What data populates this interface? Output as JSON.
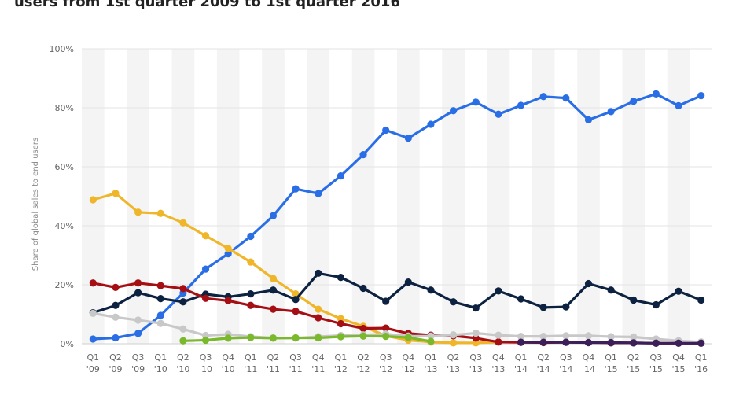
{
  "title": "users from 1st quarter 2009 to 1st quarter 2016",
  "chart_data": {
    "type": "line",
    "ylabel": "Share of global sales to end users",
    "ylim": [
      0,
      100
    ],
    "y_ticks": [
      "0%",
      "20%",
      "40%",
      "60%",
      "80%",
      "100%"
    ],
    "y_tick_values": [
      0,
      20,
      40,
      60,
      80,
      100
    ],
    "grid": true,
    "legend": "none",
    "categories": [
      [
        "Q1",
        "'09"
      ],
      [
        "Q2",
        "'09"
      ],
      [
        "Q3",
        "'09"
      ],
      [
        "Q1",
        "'10"
      ],
      [
        "Q2",
        "'10"
      ],
      [
        "Q3",
        "'10"
      ],
      [
        "Q4",
        "'10"
      ],
      [
        "Q1",
        "'11"
      ],
      [
        "Q2",
        "'11"
      ],
      [
        "Q3",
        "'11"
      ],
      [
        "Q4",
        "'11"
      ],
      [
        "Q1",
        "'12"
      ],
      [
        "Q2",
        "'12"
      ],
      [
        "Q3",
        "'12"
      ],
      [
        "Q4",
        "'12"
      ],
      [
        "Q1",
        "'13"
      ],
      [
        "Q2",
        "'13"
      ],
      [
        "Q3",
        "'13"
      ],
      [
        "Q4",
        "'13"
      ],
      [
        "Q1",
        "'14"
      ],
      [
        "Q2",
        "'14"
      ],
      [
        "Q3",
        "'14"
      ],
      [
        "Q4",
        "'14"
      ],
      [
        "Q1",
        "'15"
      ],
      [
        "Q2",
        "'15"
      ],
      [
        "Q3",
        "'15"
      ],
      [
        "Q4",
        "'15"
      ],
      [
        "Q1",
        "'16"
      ]
    ],
    "series": [
      {
        "color": "#2a6ee6",
        "values": [
          1.6,
          2.0,
          3.5,
          9.6,
          17.2,
          25.3,
          30.5,
          36.4,
          43.4,
          52.5,
          50.9,
          56.9,
          64.1,
          72.4,
          69.7,
          74.4,
          79.0,
          81.9,
          77.8,
          80.8,
          83.8,
          83.3,
          75.9,
          78.7,
          82.2,
          84.7,
          80.7,
          84.1
        ]
      },
      {
        "color": "#f0b62a",
        "values": [
          48.8,
          51.0,
          44.6,
          44.2,
          41.0,
          36.6,
          32.3,
          27.7,
          22.1,
          16.9,
          11.7,
          8.5,
          5.9,
          2.7,
          1.2,
          0.6,
          0.3,
          0.3,
          0.6,
          null,
          null,
          null,
          null,
          null,
          null,
          null,
          null,
          null
        ]
      },
      {
        "color": "#0d2240",
        "values": [
          10.5,
          13.0,
          17.3,
          15.3,
          14.2,
          16.8,
          15.9,
          16.9,
          18.2,
          15.0,
          23.9,
          22.5,
          18.8,
          14.4,
          20.9,
          18.2,
          14.2,
          12.1,
          17.9,
          15.2,
          12.3,
          12.5,
          20.4,
          18.2,
          14.8,
          13.2,
          17.8,
          14.8
        ]
      },
      {
        "color": "#a50f14",
        "values": [
          20.6,
          19.1,
          20.6,
          19.7,
          18.7,
          15.4,
          14.6,
          13.0,
          11.7,
          11.0,
          8.8,
          6.8,
          5.2,
          5.3,
          3.5,
          2.9,
          2.7,
          1.9,
          0.6,
          0.5,
          0.4,
          0.5,
          0.4,
          0.3,
          0.3,
          0.2,
          0.2,
          0.2
        ]
      },
      {
        "color": "#c8c8c8",
        "values": [
          10.3,
          9.0,
          8.0,
          6.9,
          5.0,
          2.8,
          3.2,
          2.4,
          2.0,
          1.9,
          2.4,
          2.8,
          3.0,
          3.3,
          2.6,
          2.6,
          3.0,
          3.6,
          2.9,
          2.5,
          2.5,
          2.7,
          2.7,
          2.4,
          2.3,
          1.6,
          1.0,
          0.6
        ]
      },
      {
        "color": "#7ab82c",
        "values": [
          null,
          null,
          null,
          null,
          1.0,
          1.2,
          1.9,
          2.1,
          1.9,
          2.0,
          2.0,
          2.4,
          2.6,
          2.5,
          2.1,
          0.8,
          null,
          null,
          null,
          null,
          null,
          null,
          null,
          null,
          null,
          null,
          null,
          null
        ]
      },
      {
        "color": "#3b1f5a",
        "values": [
          null,
          null,
          null,
          null,
          null,
          null,
          null,
          null,
          null,
          null,
          null,
          null,
          null,
          null,
          null,
          null,
          null,
          null,
          null,
          0.5,
          0.5,
          0.5,
          0.4,
          0.4,
          0.3,
          0.2,
          0.2,
          0.2
        ]
      }
    ]
  }
}
